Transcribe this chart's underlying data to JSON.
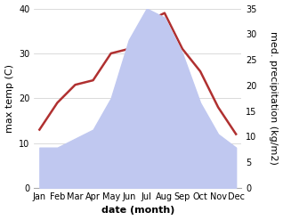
{
  "months": [
    "Jan",
    "Feb",
    "Mar",
    "Apr",
    "May",
    "Jun",
    "Jul",
    "Aug",
    "Sep",
    "Oct",
    "Nov",
    "Dec"
  ],
  "temp": [
    13,
    19,
    23,
    24,
    30,
    31,
    37,
    39,
    31,
    26,
    18,
    12
  ],
  "precip": [
    9,
    9,
    11,
    13,
    20,
    33,
    40,
    38,
    30,
    19,
    12,
    9
  ],
  "temp_color": "#b03030",
  "precip_fill_color": "#c0c8f0",
  "precip_line_color": "#8898d0",
  "left_ylim": [
    0,
    40
  ],
  "right_ylim": [
    0,
    35
  ],
  "left_yticks": [
    0,
    10,
    20,
    30,
    40
  ],
  "right_yticks": [
    0,
    5,
    10,
    15,
    20,
    25,
    30,
    35
  ],
  "xlabel": "date (month)",
  "ylabel_left": "max temp (C)",
  "ylabel_right": "med. precipitation (kg/m2)",
  "xlabel_fontsize": 8,
  "ylabel_fontsize": 8,
  "tick_fontsize": 7,
  "background_color": "#ffffff",
  "grid_color": "#cccccc",
  "spine_color": "#aaaaaa"
}
